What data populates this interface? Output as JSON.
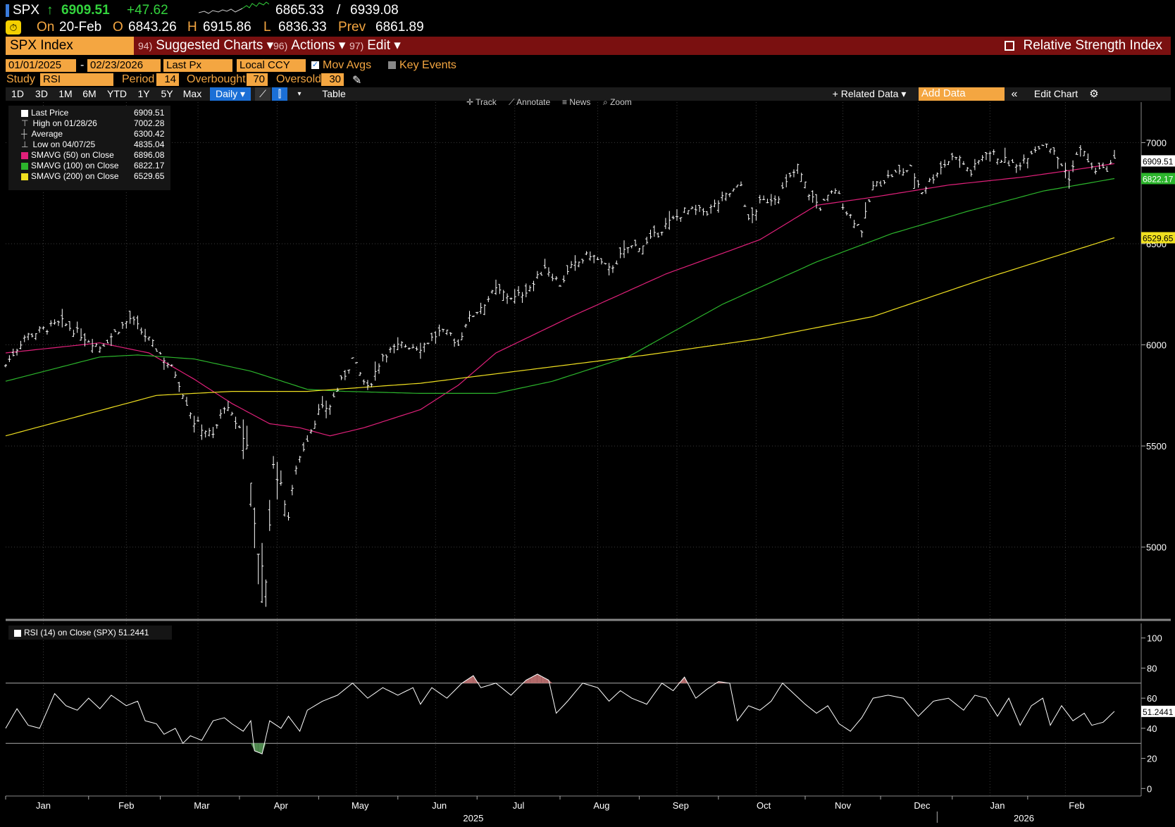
{
  "header": {
    "ticker": "SPX",
    "arrow": "↑",
    "last_price": "6909.51",
    "change": "+47.62",
    "range_low": "6865.33",
    "range_sep": "/",
    "range_high": "6939.08",
    "on_label": "On",
    "date": "20-Feb",
    "open_label": "O",
    "open": "6843.26",
    "high_label": "H",
    "high": "6915.86",
    "low_label": "L",
    "low": "6836.33",
    "prev_label": "Prev",
    "prev": "6861.89"
  },
  "toolbar": {
    "security": "SPX Index",
    "suggested_num": "94)",
    "suggested": "Suggested Charts ▾",
    "actions_num": "96)",
    "actions": "Actions ▾",
    "edit_num": "97)",
    "edit": "Edit ▾",
    "chart_title": "Relative Strength Index"
  },
  "controls": {
    "start_date": "01/01/2025",
    "date_sep": "-",
    "end_date": "02/23/2026",
    "price_field": "Last Px",
    "currency": "Local CCY",
    "mov_avgs": "Mov Avgs",
    "key_events": "Key Events",
    "study_label": "Study",
    "study": "RSI",
    "period_label": "Period",
    "period": "14",
    "overbought_label": "Overbought",
    "overbought": "70",
    "oversold_label": "Oversold",
    "oversold": "30"
  },
  "periods": [
    "1D",
    "3D",
    "1M",
    "6M",
    "YTD",
    "1Y",
    "5Y",
    "Max"
  ],
  "frequency": "Daily ▾",
  "table_btn": "Table",
  "related_data": "+ Related Data ▾",
  "add_data_placeholder": "Add Data",
  "edit_chart": "Edit Chart",
  "chart_tools": [
    "Track",
    "Annotate",
    "News",
    "Zoom"
  ],
  "legend": [
    {
      "label": "Last Price",
      "value": "6909.51",
      "color": "#ffffff"
    },
    {
      "label": "High on 01/28/26",
      "value": "7002.28",
      "color": ""
    },
    {
      "label": "Average",
      "value": "6300.42",
      "color": ""
    },
    {
      "label": "Low on 04/07/25",
      "value": "4835.04",
      "color": ""
    },
    {
      "label": "SMAVG (50)  on Close",
      "value": "6896.08",
      "color": "#e0207a"
    },
    {
      "label": "SMAVG (100)  on Close",
      "value": "6822.17",
      "color": "#2cb52c"
    },
    {
      "label": "SMAVG (200)  on Close",
      "value": "6529.65",
      "color": "#f0e020"
    }
  ],
  "rsi_legend": {
    "label": "RSI (14)  on Close (SPX)",
    "value": "51.2441"
  },
  "colors": {
    "accent": "#f4a641",
    "bar": "#7a1010",
    "ma50": "#e0207a",
    "ma100": "#2cb52c",
    "ma200": "#f0e020"
  },
  "chart_data": [
    {
      "type": "line",
      "title": "SPX Index",
      "ylim": [
        4640,
        7200
      ],
      "yticks": [
        5000,
        5500,
        6000,
        6500,
        7000
      ],
      "x_months": [
        "Jan",
        "Feb",
        "Mar",
        "Apr",
        "May",
        "Jun",
        "Jul",
        "Aug",
        "Sep",
        "Oct",
        "Nov",
        "Dec",
        "Jan",
        "Feb"
      ],
      "x_years": [
        "2025",
        "2026"
      ],
      "last_labels": [
        "6909.51",
        "6822.17",
        "6529.65"
      ],
      "series": [
        {
          "name": "Last Price",
          "color": "#ffffff",
          "anchors": [
            [
              0,
              5900
            ],
            [
              5,
              6040
            ],
            [
              15,
              6110
            ],
            [
              25,
              5990
            ],
            [
              33,
              6130
            ],
            [
              40,
              5980
            ],
            [
              45,
              5860
            ],
            [
              50,
              5620
            ],
            [
              55,
              5550
            ],
            [
              58,
              5700
            ],
            [
              62,
              5590
            ],
            [
              64,
              5500
            ],
            [
              67,
              4950
            ],
            [
              69,
              4835
            ],
            [
              71,
              5400
            ],
            [
              73,
              5300
            ],
            [
              75,
              5150
            ],
            [
              77,
              5400
            ],
            [
              80,
              5540
            ],
            [
              83,
              5670
            ],
            [
              86,
              5700
            ],
            [
              88,
              5780
            ],
            [
              92,
              5930
            ],
            [
              96,
              5780
            ],
            [
              100,
              5950
            ],
            [
              105,
              6000
            ],
            [
              110,
              5990
            ],
            [
              115,
              6060
            ],
            [
              118,
              6050
            ],
            [
              120,
              6000
            ],
            [
              122,
              6110
            ],
            [
              126,
              6190
            ],
            [
              130,
              6270
            ],
            [
              135,
              6230
            ],
            [
              140,
              6300
            ],
            [
              143,
              6390
            ],
            [
              147,
              6300
            ],
            [
              150,
              6380
            ],
            [
              155,
              6450
            ],
            [
              160,
              6370
            ],
            [
              165,
              6480
            ],
            [
              170,
              6500
            ],
            [
              175,
              6590
            ],
            [
              180,
              6660
            ],
            [
              186,
              6660
            ],
            [
              190,
              6720
            ],
            [
              195,
              6790
            ],
            [
              197,
              6610
            ],
            [
              200,
              6700
            ],
            [
              205,
              6740
            ],
            [
              210,
              6880
            ],
            [
              213,
              6750
            ],
            [
              216,
              6680
            ],
            [
              220,
              6770
            ],
            [
              223,
              6660
            ],
            [
              227,
              6570
            ],
            [
              230,
              6780
            ],
            [
              235,
              6840
            ],
            [
              240,
              6870
            ],
            [
              243,
              6760
            ],
            [
              248,
              6880
            ],
            [
              252,
              6940
            ],
            [
              256,
              6850
            ],
            [
              260,
              6960
            ],
            [
              264,
              6920
            ],
            [
              268,
              6880
            ],
            [
              272,
              6960
            ],
            [
              276,
              7002
            ],
            [
              279,
              6920
            ],
            [
              282,
              6830
            ],
            [
              285,
              6980
            ],
            [
              288,
              6870
            ],
            [
              291,
              6860
            ],
            [
              294,
              6909.51
            ]
          ]
        },
        {
          "name": "SMAVG (50)",
          "color": "#e0207a",
          "anchors": [
            [
              0,
              5960
            ],
            [
              25,
              6010
            ],
            [
              38,
              5960
            ],
            [
              50,
              5830
            ],
            [
              60,
              5710
            ],
            [
              70,
              5610
            ],
            [
              78,
              5590
            ],
            [
              86,
              5550
            ],
            [
              95,
              5590
            ],
            [
              110,
              5680
            ],
            [
              120,
              5800
            ],
            [
              130,
              5960
            ],
            [
              150,
              6140
            ],
            [
              175,
              6350
            ],
            [
              200,
              6520
            ],
            [
              215,
              6690
            ],
            [
              230,
              6730
            ],
            [
              250,
              6790
            ],
            [
              270,
              6830
            ],
            [
              285,
              6870
            ],
            [
              294,
              6896.08
            ]
          ]
        },
        {
          "name": "SMAVG (100)",
          "color": "#2cb52c",
          "anchors": [
            [
              0,
              5820
            ],
            [
              25,
              5940
            ],
            [
              35,
              5950
            ],
            [
              50,
              5930
            ],
            [
              65,
              5870
            ],
            [
              80,
              5780
            ],
            [
              90,
              5770
            ],
            [
              110,
              5760
            ],
            [
              130,
              5760
            ],
            [
              145,
              5820
            ],
            [
              165,
              5940
            ],
            [
              190,
              6200
            ],
            [
              215,
              6410
            ],
            [
              235,
              6550
            ],
            [
              255,
              6660
            ],
            [
              275,
              6760
            ],
            [
              294,
              6822.17
            ]
          ]
        },
        {
          "name": "SMAVG (200)",
          "color": "#f0e020",
          "anchors": [
            [
              0,
              5550
            ],
            [
              40,
              5750
            ],
            [
              60,
              5770
            ],
            [
              80,
              5770
            ],
            [
              110,
              5810
            ],
            [
              140,
              5880
            ],
            [
              170,
              5950
            ],
            [
              200,
              6030
            ],
            [
              230,
              6140
            ],
            [
              260,
              6330
            ],
            [
              294,
              6529.65
            ]
          ]
        }
      ]
    },
    {
      "type": "line",
      "title": "RSI (14) on Close (SPX)",
      "ylim": [
        -5,
        105
      ],
      "yticks": [
        0,
        20,
        40,
        60,
        80,
        100
      ],
      "overbought": 70,
      "oversold": 30,
      "last_value": "51.2441",
      "series": [
        {
          "name": "RSI (14)",
          "color": "#ffffff",
          "anchors": [
            [
              0,
              40
            ],
            [
              3,
              53
            ],
            [
              6,
              42
            ],
            [
              9,
              40
            ],
            [
              13,
              63
            ],
            [
              16,
              55
            ],
            [
              19,
              52
            ],
            [
              22,
              60
            ],
            [
              25,
              53
            ],
            [
              28,
              62
            ],
            [
              32,
              55
            ],
            [
              35,
              58
            ],
            [
              37,
              45
            ],
            [
              40,
              43
            ],
            [
              42,
              36
            ],
            [
              45,
              40
            ],
            [
              47,
              30
            ],
            [
              49,
              35
            ],
            [
              52,
              32
            ],
            [
              55,
              45
            ],
            [
              58,
              47
            ],
            [
              60,
              43
            ],
            [
              63,
              38
            ],
            [
              65,
              45
            ],
            [
              66,
              25
            ],
            [
              68,
              23
            ],
            [
              70,
              45
            ],
            [
              73,
              40
            ],
            [
              75,
              48
            ],
            [
              78,
              38
            ],
            [
              80,
              52
            ],
            [
              84,
              58
            ],
            [
              88,
              62
            ],
            [
              92,
              70
            ],
            [
              96,
              60
            ],
            [
              100,
              67
            ],
            [
              104,
              62
            ],
            [
              108,
              67
            ],
            [
              110,
              56
            ],
            [
              113,
              67
            ],
            [
              117,
              60
            ],
            [
              121,
              70
            ],
            [
              124,
              75
            ],
            [
              126,
              67
            ],
            [
              130,
              70
            ],
            [
              134,
              62
            ],
            [
              138,
              72
            ],
            [
              141,
              76
            ],
            [
              144,
              72
            ],
            [
              146,
              50
            ],
            [
              149,
              58
            ],
            [
              153,
              70
            ],
            [
              157,
              67
            ],
            [
              160,
              58
            ],
            [
              163,
              65
            ],
            [
              166,
              60
            ],
            [
              170,
              56
            ],
            [
              174,
              70
            ],
            [
              177,
              65
            ],
            [
              180,
              74
            ],
            [
              183,
              60
            ],
            [
              186,
              66
            ],
            [
              189,
              71
            ],
            [
              192,
              70
            ],
            [
              194,
              45
            ],
            [
              197,
              55
            ],
            [
              200,
              52
            ],
            [
              203,
              58
            ],
            [
              206,
              70
            ],
            [
              209,
              63
            ],
            [
              212,
              56
            ],
            [
              215,
              50
            ],
            [
              218,
              55
            ],
            [
              221,
              43
            ],
            [
              224,
              38
            ],
            [
              227,
              47
            ],
            [
              230,
              60
            ],
            [
              234,
              62
            ],
            [
              238,
              60
            ],
            [
              242,
              48
            ],
            [
              246,
              58
            ],
            [
              250,
              60
            ],
            [
              254,
              52
            ],
            [
              257,
              62
            ],
            [
              260,
              60
            ],
            [
              263,
              48
            ],
            [
              266,
              60
            ],
            [
              269,
              42
            ],
            [
              272,
              55
            ],
            [
              275,
              60
            ],
            [
              277,
              42
            ],
            [
              280,
              55
            ],
            [
              283,
              45
            ],
            [
              286,
              50
            ],
            [
              288,
              42
            ],
            [
              291,
              44
            ],
            [
              294,
              51.2441
            ]
          ]
        }
      ]
    }
  ]
}
